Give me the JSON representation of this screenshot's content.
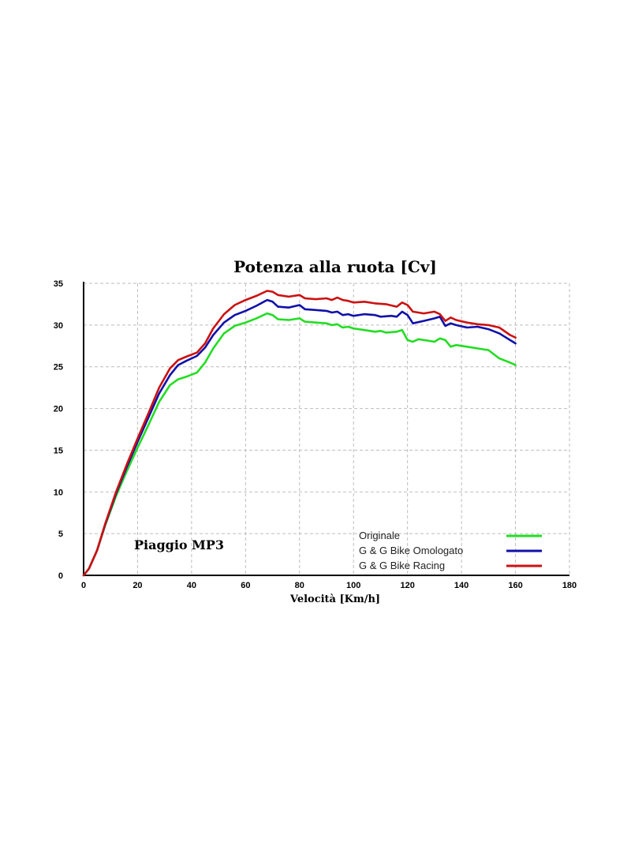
{
  "chart_data": {
    "type": "line",
    "title": "Potenza alla ruota  [Cv]",
    "xlabel": "Velocità [Km/h]",
    "ylabel": "",
    "xlim": [
      0,
      180
    ],
    "ylim": [
      0,
      35
    ],
    "xticks": [
      0,
      20,
      40,
      60,
      80,
      100,
      120,
      140,
      160,
      180
    ],
    "yticks": [
      0,
      5,
      10,
      15,
      20,
      25,
      30,
      35
    ],
    "grid": true,
    "legend_position": "bottom-right",
    "annotation": "Piaggio MP3",
    "series": [
      {
        "name": "Originale",
        "color": "#22dd22",
        "points": [
          [
            0,
            0
          ],
          [
            2,
            0.8
          ],
          [
            5,
            3
          ],
          [
            8,
            6
          ],
          [
            12,
            9.5
          ],
          [
            16,
            12.5
          ],
          [
            20,
            15.3
          ],
          [
            24,
            18
          ],
          [
            28,
            20.8
          ],
          [
            32,
            22.8
          ],
          [
            35,
            23.5
          ],
          [
            38,
            23.8
          ],
          [
            42,
            24.3
          ],
          [
            45,
            25.5
          ],
          [
            48,
            27.2
          ],
          [
            52,
            29
          ],
          [
            56,
            29.9
          ],
          [
            60,
            30.3
          ],
          [
            64,
            30.8
          ],
          [
            68,
            31.4
          ],
          [
            70,
            31.2
          ],
          [
            72,
            30.7
          ],
          [
            76,
            30.6
          ],
          [
            80,
            30.8
          ],
          [
            82,
            30.4
          ],
          [
            86,
            30.3
          ],
          [
            90,
            30.2
          ],
          [
            92,
            30.0
          ],
          [
            94,
            30.1
          ],
          [
            96,
            29.7
          ],
          [
            98,
            29.8
          ],
          [
            100,
            29.6
          ],
          [
            104,
            29.4
          ],
          [
            108,
            29.2
          ],
          [
            110,
            29.3
          ],
          [
            112,
            29.1
          ],
          [
            116,
            29.2
          ],
          [
            118,
            29.4
          ],
          [
            120,
            28.2
          ],
          [
            122,
            28.0
          ],
          [
            124,
            28.3
          ],
          [
            128,
            28.1
          ],
          [
            130,
            28.0
          ],
          [
            132,
            28.4
          ],
          [
            134,
            28.2
          ],
          [
            136,
            27.4
          ],
          [
            138,
            27.6
          ],
          [
            142,
            27.4
          ],
          [
            146,
            27.2
          ],
          [
            150,
            27.0
          ],
          [
            154,
            26.0
          ],
          [
            158,
            25.5
          ],
          [
            160,
            25.2
          ]
        ]
      },
      {
        "name": "G & G Bike Omologato",
        "color": "#1010aa",
        "points": [
          [
            0,
            0
          ],
          [
            2,
            0.8
          ],
          [
            5,
            3
          ],
          [
            8,
            6.1
          ],
          [
            12,
            9.8
          ],
          [
            16,
            13
          ],
          [
            20,
            16
          ],
          [
            24,
            18.9
          ],
          [
            28,
            21.8
          ],
          [
            32,
            24
          ],
          [
            35,
            25.2
          ],
          [
            38,
            25.7
          ],
          [
            42,
            26.3
          ],
          [
            45,
            27.3
          ],
          [
            48,
            28.8
          ],
          [
            52,
            30.3
          ],
          [
            56,
            31.2
          ],
          [
            60,
            31.7
          ],
          [
            64,
            32.3
          ],
          [
            68,
            33.0
          ],
          [
            70,
            32.8
          ],
          [
            72,
            32.2
          ],
          [
            76,
            32.1
          ],
          [
            80,
            32.4
          ],
          [
            82,
            31.9
          ],
          [
            86,
            31.8
          ],
          [
            90,
            31.7
          ],
          [
            92,
            31.5
          ],
          [
            94,
            31.6
          ],
          [
            96,
            31.2
          ],
          [
            98,
            31.3
          ],
          [
            100,
            31.1
          ],
          [
            104,
            31.3
          ],
          [
            108,
            31.2
          ],
          [
            110,
            31.0
          ],
          [
            114,
            31.1
          ],
          [
            116,
            31.0
          ],
          [
            118,
            31.6
          ],
          [
            120,
            31.2
          ],
          [
            122,
            30.2
          ],
          [
            126,
            30.5
          ],
          [
            130,
            30.8
          ],
          [
            132,
            31.0
          ],
          [
            134,
            29.9
          ],
          [
            136,
            30.2
          ],
          [
            138,
            30.0
          ],
          [
            142,
            29.7
          ],
          [
            146,
            29.8
          ],
          [
            150,
            29.5
          ],
          [
            154,
            29.0
          ],
          [
            158,
            28.2
          ],
          [
            160,
            27.8
          ]
        ]
      },
      {
        "name": "G & G Bike Racing",
        "color": "#cc1111",
        "points": [
          [
            0,
            0
          ],
          [
            2,
            0.8
          ],
          [
            5,
            3
          ],
          [
            8,
            6.2
          ],
          [
            12,
            10
          ],
          [
            16,
            13.3
          ],
          [
            20,
            16.4
          ],
          [
            24,
            19.4
          ],
          [
            28,
            22.5
          ],
          [
            32,
            24.8
          ],
          [
            35,
            25.8
          ],
          [
            38,
            26.2
          ],
          [
            42,
            26.7
          ],
          [
            45,
            27.8
          ],
          [
            48,
            29.6
          ],
          [
            52,
            31.3
          ],
          [
            56,
            32.4
          ],
          [
            60,
            33
          ],
          [
            64,
            33.5
          ],
          [
            68,
            34.1
          ],
          [
            70,
            34.0
          ],
          [
            72,
            33.6
          ],
          [
            76,
            33.4
          ],
          [
            80,
            33.6
          ],
          [
            82,
            33.2
          ],
          [
            86,
            33.1
          ],
          [
            90,
            33.2
          ],
          [
            92,
            33.0
          ],
          [
            94,
            33.3
          ],
          [
            96,
            33.0
          ],
          [
            98,
            32.9
          ],
          [
            100,
            32.7
          ],
          [
            104,
            32.8
          ],
          [
            108,
            32.6
          ],
          [
            112,
            32.5
          ],
          [
            116,
            32.2
          ],
          [
            118,
            32.7
          ],
          [
            120,
            32.4
          ],
          [
            122,
            31.6
          ],
          [
            126,
            31.4
          ],
          [
            130,
            31.6
          ],
          [
            132,
            31.3
          ],
          [
            134,
            30.5
          ],
          [
            136,
            30.9
          ],
          [
            138,
            30.6
          ],
          [
            142,
            30.3
          ],
          [
            146,
            30.1
          ],
          [
            150,
            30.0
          ],
          [
            154,
            29.7
          ],
          [
            158,
            28.8
          ],
          [
            160,
            28.5
          ]
        ]
      }
    ]
  }
}
